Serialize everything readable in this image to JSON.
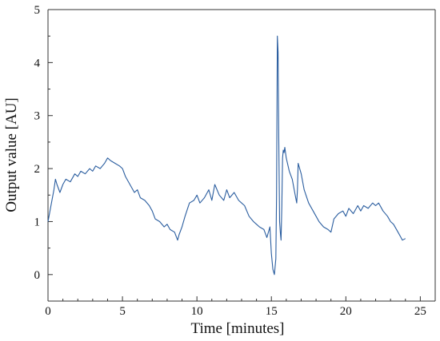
{
  "chart_data": {
    "type": "line",
    "title": "",
    "xlabel": "Time [minutes]",
    "ylabel": "Output value [AU]",
    "xlim": [
      0,
      26
    ],
    "ylim": [
      -0.5,
      5
    ],
    "xticks": [
      0,
      5,
      10,
      15,
      20,
      25
    ],
    "yticks": [
      0,
      1,
      2,
      3,
      4,
      5
    ],
    "grid": false,
    "legend": "none",
    "series_color": "#2a5d9f",
    "series": [
      {
        "x": [
          0.0,
          0.2,
          0.4,
          0.5,
          0.6,
          0.8,
          1.0,
          1.2,
          1.5,
          1.8,
          2.0,
          2.2,
          2.5,
          2.8,
          3.0,
          3.2,
          3.5,
          3.8,
          4.0,
          4.2,
          4.5,
          4.8,
          5.0,
          5.2,
          5.5,
          5.8,
          6.0,
          6.2,
          6.5,
          6.8,
          7.0,
          7.2,
          7.5,
          7.8,
          8.0,
          8.2,
          8.5,
          8.7,
          8.8,
          9.0,
          9.2,
          9.5,
          9.8,
          10.0,
          10.2,
          10.5,
          10.8,
          11.0,
          11.2,
          11.5,
          11.8,
          12.0,
          12.2,
          12.5,
          12.8,
          13.0,
          13.2,
          13.5,
          13.8,
          14.0,
          14.2,
          14.5,
          14.7,
          14.9,
          15.0,
          15.1,
          15.2,
          15.3,
          15.35,
          15.4,
          15.45,
          15.5,
          15.55,
          15.6,
          15.65,
          15.7,
          15.75,
          15.8,
          15.85,
          15.9,
          16.0,
          16.2,
          16.4,
          16.6,
          16.7,
          16.75,
          16.8,
          17.0,
          17.2,
          17.5,
          17.8,
          18.0,
          18.2,
          18.5,
          18.8,
          19.0,
          19.2,
          19.5,
          19.8,
          20.0,
          20.2,
          20.5,
          20.8,
          21.0,
          21.2,
          21.5,
          21.8,
          22.0,
          22.2,
          22.5,
          22.8,
          23.0,
          23.2,
          23.5,
          23.7,
          23.8,
          24.0
        ],
        "y": [
          1.0,
          1.3,
          1.6,
          1.8,
          1.7,
          1.55,
          1.7,
          1.8,
          1.75,
          1.9,
          1.85,
          1.95,
          1.9,
          2.0,
          1.95,
          2.05,
          2.0,
          2.1,
          2.2,
          2.15,
          2.1,
          2.05,
          2.0,
          1.85,
          1.7,
          1.55,
          1.6,
          1.45,
          1.4,
          1.3,
          1.2,
          1.05,
          1.0,
          0.9,
          0.95,
          0.85,
          0.8,
          0.65,
          0.75,
          0.9,
          1.1,
          1.35,
          1.4,
          1.5,
          1.35,
          1.45,
          1.6,
          1.4,
          1.7,
          1.5,
          1.4,
          1.6,
          1.45,
          1.55,
          1.4,
          1.35,
          1.3,
          1.1,
          1.0,
          0.95,
          0.9,
          0.85,
          0.7,
          0.9,
          0.4,
          0.1,
          0.0,
          0.3,
          1.5,
          4.5,
          4.2,
          2.5,
          1.0,
          0.8,
          0.65,
          1.3,
          2.2,
          2.35,
          2.3,
          2.4,
          2.2,
          1.95,
          1.8,
          1.5,
          1.35,
          1.6,
          2.1,
          1.9,
          1.6,
          1.35,
          1.2,
          1.1,
          1.0,
          0.9,
          0.85,
          0.8,
          1.05,
          1.15,
          1.2,
          1.1,
          1.25,
          1.15,
          1.3,
          1.2,
          1.3,
          1.25,
          1.35,
          1.3,
          1.35,
          1.2,
          1.1,
          1.0,
          0.95,
          0.8,
          0.7,
          0.65,
          0.68
        ]
      }
    ]
  }
}
